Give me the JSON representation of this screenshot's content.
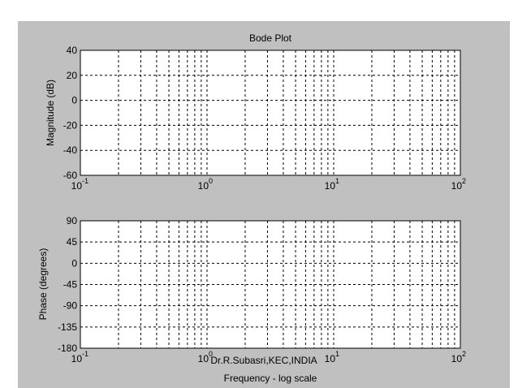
{
  "figure": {
    "background_color": "#c0c0c0",
    "axes_color": "#ffffff",
    "grid_color": "#000000"
  },
  "credit": "Dr.R.Subasri,KEC,INDIA",
  "chart_data": [
    {
      "type": "line",
      "title": "Bode Plot",
      "xlabel": "",
      "ylabel": "Magnitude (dB)",
      "xscale": "log",
      "xlim": [
        0.1,
        100
      ],
      "ylim": [
        -60,
        40
      ],
      "yticks": [
        "40",
        "20",
        "0",
        "-20",
        "-40",
        "-60"
      ],
      "xticks": [
        {
          "base": "10",
          "exp": "-1"
        },
        {
          "base": "10",
          "exp": "0"
        },
        {
          "base": "10",
          "exp": "1"
        },
        {
          "base": "10",
          "exp": "2"
        }
      ],
      "grid": true,
      "series": []
    },
    {
      "type": "line",
      "title": "",
      "xlabel": "Frequency - log scale",
      "ylabel": "Phase (degrees)",
      "xscale": "log",
      "xlim": [
        0.1,
        100
      ],
      "ylim": [
        -180,
        90
      ],
      "yticks": [
        "90",
        "45",
        "0",
        "-45",
        "-90",
        "-135",
        "-180"
      ],
      "xticks": [
        {
          "base": "10",
          "exp": "-1"
        },
        {
          "base": "10",
          "exp": "0"
        },
        {
          "base": "10",
          "exp": "1"
        },
        {
          "base": "10",
          "exp": "2"
        }
      ],
      "grid": true,
      "series": [
        {
          "x": [
            0.1,
            100
          ],
          "y": [
            90,
            90
          ]
        }
      ]
    }
  ]
}
